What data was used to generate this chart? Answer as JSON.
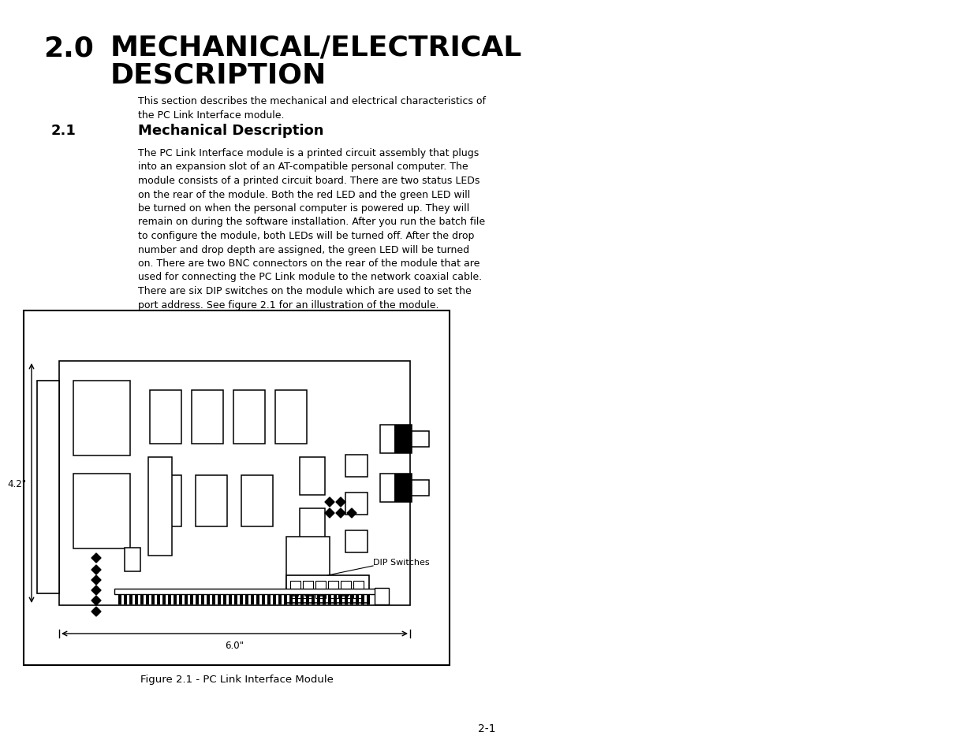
{
  "title_number": "2.0",
  "title_text": "MECHANICAL/ELECTRICAL\nDESCRIPTION",
  "section_number": "2.1",
  "section_title": "Mechanical Description",
  "intro_text": "This section describes the mechanical and electrical characteristics of\nthe PC Link Interface module.",
  "body_text": "The PC Link Interface module is a printed circuit assembly that plugs\ninto an expansion slot of an AT-compatible personal computer. The\nmodule consists of a printed circuit board. There are two status LEDs\non the rear of the module. Both the red LED and the green LED will\nbe turned on when the personal computer is powered up. They will\nremain on during the software installation. After you run the batch file\nto configure the module, both LEDs will be turned off. After the drop\nnumber and drop depth are assigned, the green LED will be turned\non. There are two BNC connectors on the rear of the module that are\nused for connecting the PC Link module to the network coaxial cable.\nThere are six DIP switches on the module which are used to set the\nport address. See figure 2.1 for an illustration of the module.",
  "figure_caption": "Figure 2.1 - PC Link Interface Module",
  "page_number": "2-1",
  "dim_42": "4.2\"",
  "dim_60": "6.0\"",
  "dip_label": "DIP Switches",
  "bg_color": "#ffffff",
  "text_color": "#000000"
}
